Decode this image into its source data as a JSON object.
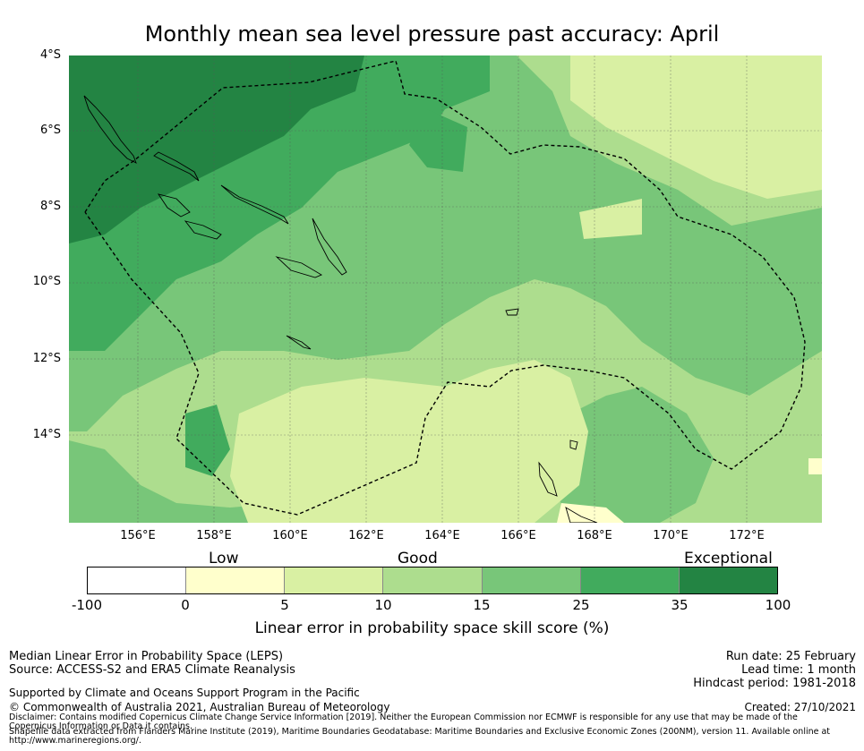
{
  "title": "Monthly mean sea level pressure past accuracy: April",
  "map": {
    "lat_labels": [
      "4°S",
      "6°S",
      "8°S",
      "10°S",
      "12°S",
      "14°S"
    ],
    "lon_labels": [
      "156°E",
      "158°E",
      "160°E",
      "162°E",
      "164°E",
      "166°E",
      "168°E",
      "170°E",
      "172°E"
    ]
  },
  "colorbar": {
    "categories": [
      "Low",
      "Good",
      "Exceptional"
    ],
    "ticks": [
      "-100",
      "0",
      "5",
      "10",
      "15",
      "25",
      "35",
      "100"
    ],
    "colors": [
      "#ffffff",
      "#ffffcc",
      "#d9f0a3",
      "#addd8e",
      "#78c679",
      "#41ab5d",
      "#238443"
    ],
    "label": "Linear error in probability space skill score (%)"
  },
  "footer": {
    "left1": "Median Linear Error in Probability Space (LEPS)",
    "left2": "Source: ACCESS-S2 and ERA5 Climate Reanalysis",
    "support": "Supported by Climate and Oceans Support Program in the Pacific",
    "copyright": "© Commonwealth of Australia 2021, Australian Bureau of Meteorology",
    "disclaimer1": "Disclaimer: Contains modified Copernicus Climate Change Service Information [2019]. Neither the European Commission nor ECMWF is responsible for any use that may be made of the Copernicus Information or Data it contains.",
    "disclaimer2": "Shapefile data extracted from Flanders Marine Institute (2019), Maritime Boundaries Geodatabase: Maritime Boundaries and Exclusive Economic Zones (200NM), version 11. Available online at http://www.marineregions.org/.",
    "run_date": "Run date: 25 February",
    "lead_time": "Lead time: 1 month",
    "hindcast": "Hindcast period: 1981-2018",
    "created": "Created: 27/10/2021"
  }
}
